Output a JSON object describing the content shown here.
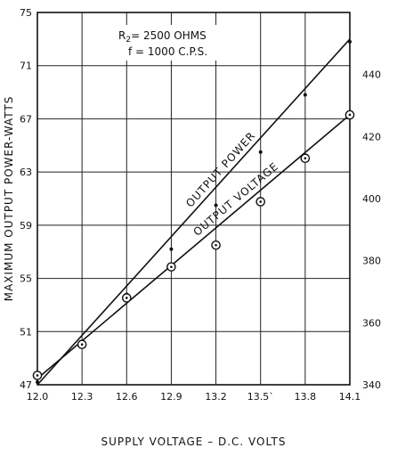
{
  "chart_data": {
    "type": "line",
    "xlabel": "SUPPLY VOLTAGE – D.C. VOLTS",
    "ylabel": "MAXIMUM OUTPUT POWER-WATTS",
    "xlim": [
      12.0,
      14.1
    ],
    "ylim": [
      47,
      75
    ],
    "ylim_right": [
      340,
      460
    ],
    "x_ticks": [
      {
        "value": 12.0,
        "label": "12.0"
      },
      {
        "value": 12.3,
        "label": "12.3"
      },
      {
        "value": 12.6,
        "label": "12.6"
      },
      {
        "value": 12.9,
        "label": "12.9"
      },
      {
        "value": 13.2,
        "label": "13.2"
      },
      {
        "value": 13.5,
        "label": "13.5`"
      },
      {
        "value": 13.8,
        "label": "13.8"
      },
      {
        "value": 14.1,
        "label": "14.1"
      }
    ],
    "y_ticks_left": [
      {
        "value": 47,
        "label": "47"
      },
      {
        "value": 51,
        "label": "51"
      },
      {
        "value": 55,
        "label": "55"
      },
      {
        "value": 59,
        "label": "59"
      },
      {
        "value": 63,
        "label": "63"
      },
      {
        "value": 67,
        "label": "67"
      },
      {
        "value": 71,
        "label": "71"
      },
      {
        "value": 75,
        "label": "75"
      }
    ],
    "y_ticks_right": [
      {
        "value": 340,
        "label": "340"
      },
      {
        "value": 360,
        "label": "360"
      },
      {
        "value": 380,
        "label": "380"
      },
      {
        "value": 400,
        "label": "400"
      },
      {
        "value": 420,
        "label": "420"
      },
      {
        "value": 440,
        "label": "440"
      }
    ],
    "grid": true,
    "annotation": {
      "r_label": "R",
      "r_sub": "2",
      "r_value": "= 2500 OHMS",
      "f_line": "f = 1000 C.P.S."
    },
    "series": [
      {
        "name": "OUTPUT POWER",
        "axis": "left",
        "marker": "dot",
        "points": [
          [
            12.0,
            47.2
          ],
          [
            12.6,
            53.8
          ],
          [
            12.9,
            57.2
          ],
          [
            13.2,
            60.5
          ],
          [
            13.5,
            64.5
          ],
          [
            13.8,
            68.8
          ],
          [
            14.1,
            72.8
          ]
        ],
        "fit": [
          [
            12.0,
            47.0
          ],
          [
            14.1,
            73.0
          ]
        ]
      },
      {
        "name": "OUTPUT VOLTAGE",
        "axis": "right",
        "marker": "circle",
        "points": [
          [
            12.0,
            343
          ],
          [
            12.3,
            353
          ],
          [
            12.6,
            368
          ],
          [
            12.9,
            378
          ],
          [
            13.2,
            385
          ],
          [
            13.5,
            399
          ],
          [
            13.8,
            413
          ],
          [
            14.1,
            427
          ]
        ],
        "fit": [
          [
            12.0,
            342
          ],
          [
            14.1,
            427
          ]
        ]
      }
    ]
  }
}
